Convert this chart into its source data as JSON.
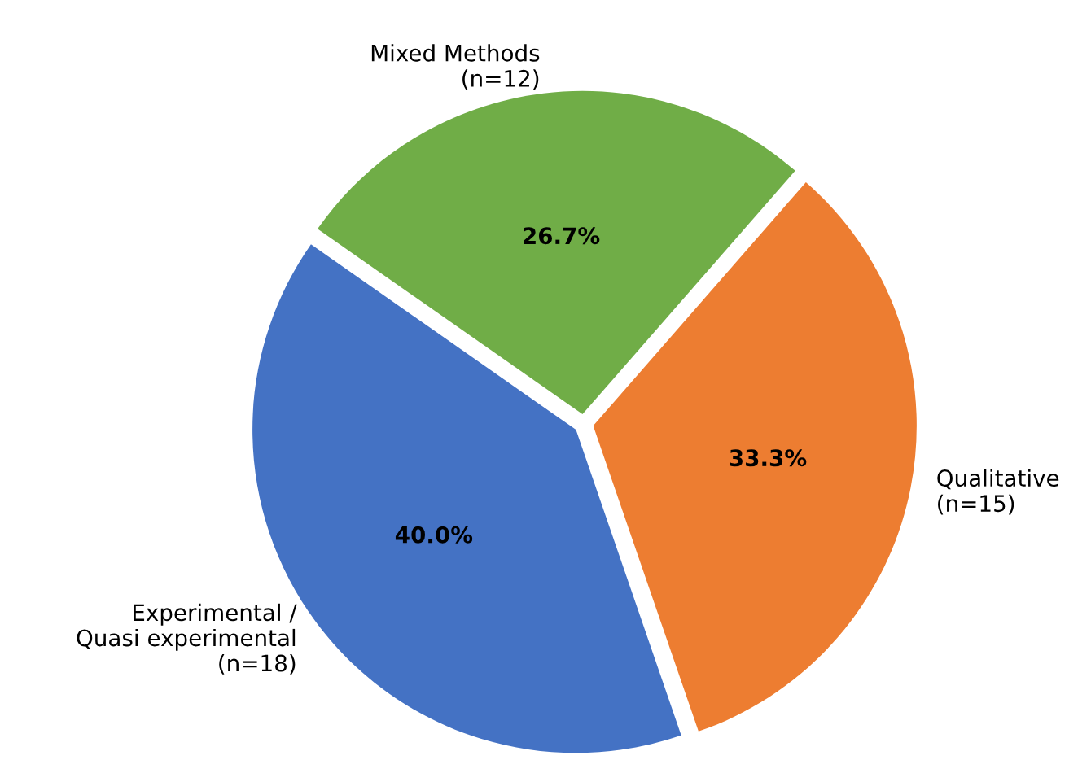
{
  "chart_data": {
    "type": "pie",
    "categories": [
      "Experimental /\nQuasi experimental\n(n=18)",
      "Qualitative\n(n=15)",
      "Mixed Methods\n(n=12)"
    ],
    "values": [
      40.0,
      33.3,
      26.7
    ],
    "value_labels": [
      "40.0%",
      "33.3%",
      "26.7%"
    ],
    "colors": [
      "#4472c4",
      "#ed7d31",
      "#70ad47"
    ],
    "legend": false
  }
}
